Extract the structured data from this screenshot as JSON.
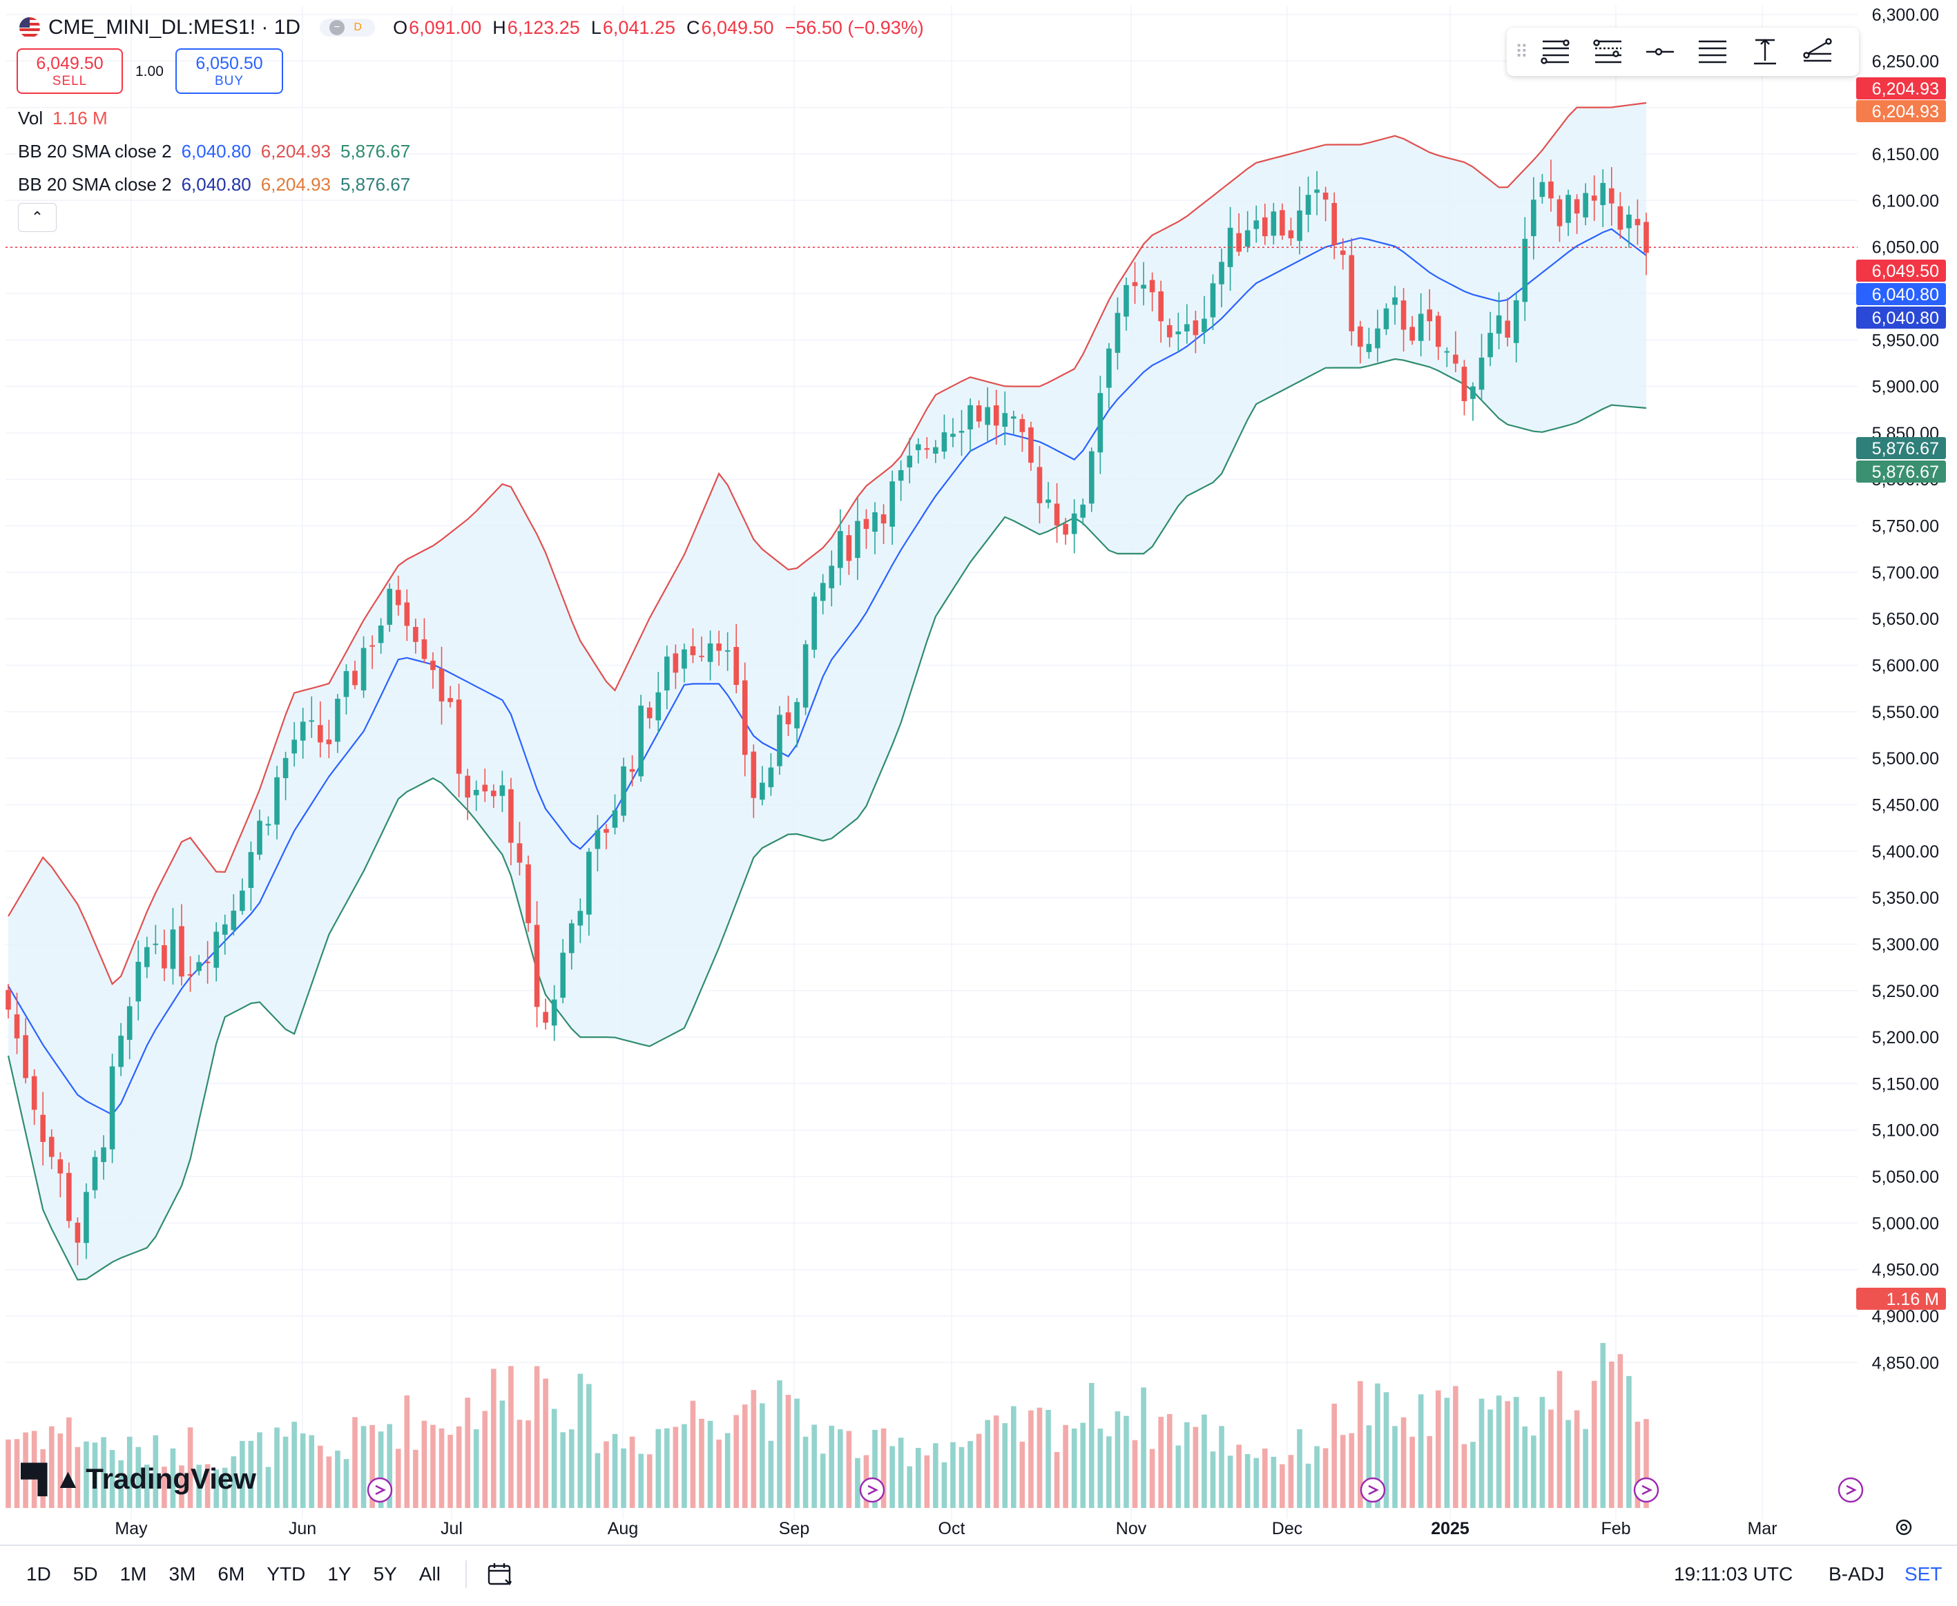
{
  "header": {
    "symbol": "CME_MINI_DL:MES1! · 1D",
    "badge_d": "D",
    "open_label": "O",
    "open": "6,091.00",
    "high_label": "H",
    "high": "6,123.25",
    "low_label": "L",
    "low": "6,041.25",
    "close_label": "C",
    "close": "6,049.50",
    "change": "−56.50 (−0.93%)"
  },
  "trade": {
    "sell_price": "6,049.50",
    "sell_label": "SELL",
    "qty": "1.00",
    "buy_price": "6,050.50",
    "buy_label": "BUY"
  },
  "legend": {
    "vol_label": "Vol",
    "vol_value": "1.16 M",
    "bb1_label": "BB 20 SMA close 2",
    "bb1_basis": "6,040.80",
    "bb1_upper": "6,204.93",
    "bb1_lower": "5,876.67",
    "bb2_label": "BB 20 SMA close 2",
    "bb2_basis": "6,040.80",
    "bb2_upper": "6,204.93",
    "bb2_lower": "5,876.67"
  },
  "price_tags": {
    "upper_a": "6,204.93",
    "upper_b": "6,204.93",
    "last": "6,049.50",
    "basis_a": "6,040.80",
    "basis_b": "6,040.80",
    "lower_a": "5,876.67",
    "lower_b": "5,876.67",
    "volume": "1.16 M"
  },
  "colors": {
    "up": "#26a69a",
    "down": "#ef5350",
    "upper_band": "#e0504f",
    "basis": "#2962ff",
    "lower_band": "#2f8c6e",
    "band_fill": "#e3f2fd"
  },
  "logo_text": "TradingView",
  "bottom_bar": {
    "ranges": [
      "1D",
      "5D",
      "1M",
      "3M",
      "6M",
      "YTD",
      "1Y",
      "5Y",
      "All"
    ],
    "time": "19:11:03 UTC",
    "adj": "B-ADJ",
    "set": "SET"
  },
  "chart_data": {
    "type": "candlestick",
    "title": "",
    "y_axis_ticks": [
      "6,300.00",
      "6,250.00",
      "6,200.00",
      "6,150.00",
      "6,100.00",
      "6,050.00",
      "6,000.00",
      "5,950.00",
      "5,900.00",
      "5,850.00",
      "5,800.00",
      "5,750.00",
      "5,700.00",
      "5,650.00",
      "5,600.00",
      "5,550.00",
      "5,500.00",
      "5,450.00",
      "5,400.00",
      "5,350.00",
      "5,300.00",
      "5,250.00",
      "5,200.00",
      "5,150.00",
      "5,100.00",
      "5,050.00",
      "5,000.00",
      "4,950.00",
      "4,900.00",
      "4,850.00"
    ],
    "ylim": [
      4835,
      6310
    ],
    "x_axis_ticks": [
      {
        "label": "May",
        "bold": false
      },
      {
        "label": "Jun",
        "bold": false
      },
      {
        "label": "Jul",
        "bold": false
      },
      {
        "label": "Aug",
        "bold": false
      },
      {
        "label": "Sep",
        "bold": false
      },
      {
        "label": "Oct",
        "bold": false
      },
      {
        "label": "Nov",
        "bold": false
      },
      {
        "label": "Dec",
        "bold": false
      },
      {
        "label": "2025",
        "bold": true
      },
      {
        "label": "Feb",
        "bold": false
      },
      {
        "label": "Mar",
        "bold": false
      }
    ],
    "anchors": [
      {
        "c": 5230,
        "u": 5330,
        "m": 5255,
        "l": 5180,
        "v": 0.24
      },
      {
        "c": 5100,
        "u": 5395,
        "m": 5190,
        "l": 5010,
        "v": 0.27
      },
      {
        "c": 4980,
        "u": 5340,
        "m": 5135,
        "l": 4935,
        "v": 0.25
      },
      {
        "c": 5160,
        "u": 5250,
        "m": 5115,
        "l": 4960,
        "v": 0.2
      },
      {
        "c": 5310,
        "u": 5345,
        "m": 5200,
        "l": 4975,
        "v": 0.18
      },
      {
        "c": 5280,
        "u": 5420,
        "m": 5260,
        "l": 5050,
        "v": 0.22
      },
      {
        "c": 5320,
        "u": 5370,
        "m": 5300,
        "l": 5220,
        "v": 0.18
      },
      {
        "c": 5420,
        "u": 5460,
        "m": 5340,
        "l": 5240,
        "v": 0.2
      },
      {
        "c": 5520,
        "u": 5570,
        "m": 5420,
        "l": 5200,
        "v": 0.22
      },
      {
        "c": 5520,
        "u": 5580,
        "m": 5480,
        "l": 5310,
        "v": 0.18
      },
      {
        "c": 5620,
        "u": 5650,
        "m": 5530,
        "l": 5380,
        "v": 0.25
      },
      {
        "c": 5680,
        "u": 5710,
        "m": 5610,
        "l": 5460,
        "v": 0.3
      },
      {
        "c": 5600,
        "u": 5730,
        "m": 5600,
        "l": 5480,
        "v": 0.28
      },
      {
        "c": 5450,
        "u": 5760,
        "m": 5580,
        "l": 5440,
        "v": 0.35
      },
      {
        "c": 5460,
        "u": 5800,
        "m": 5560,
        "l": 5390,
        "v": 0.4
      },
      {
        "c": 5200,
        "u": 5730,
        "m": 5450,
        "l": 5250,
        "v": 0.45
      },
      {
        "c": 5350,
        "u": 5630,
        "m": 5400,
        "l": 5200,
        "v": 0.35
      },
      {
        "c": 5450,
        "u": 5570,
        "m": 5440,
        "l": 5200,
        "v": 0.22
      },
      {
        "c": 5560,
        "u": 5650,
        "m": 5510,
        "l": 5190,
        "v": 0.25
      },
      {
        "c": 5620,
        "u": 5720,
        "m": 5580,
        "l": 5210,
        "v": 0.3
      },
      {
        "c": 5640,
        "u": 5810,
        "m": 5580,
        "l": 5300,
        "v": 0.35
      },
      {
        "c": 5450,
        "u": 5730,
        "m": 5520,
        "l": 5400,
        "v": 0.38
      },
      {
        "c": 5560,
        "u": 5700,
        "m": 5500,
        "l": 5420,
        "v": 0.3
      },
      {
        "c": 5700,
        "u": 5730,
        "m": 5600,
        "l": 5410,
        "v": 0.25
      },
      {
        "c": 5760,
        "u": 5790,
        "m": 5650,
        "l": 5440,
        "v": 0.2
      },
      {
        "c": 5790,
        "u": 5820,
        "m": 5720,
        "l": 5530,
        "v": 0.2
      },
      {
        "c": 5850,
        "u": 5890,
        "m": 5780,
        "l": 5650,
        "v": 0.22
      },
      {
        "c": 5880,
        "u": 5910,
        "m": 5830,
        "l": 5710,
        "v": 0.22
      },
      {
        "c": 5860,
        "u": 5900,
        "m": 5850,
        "l": 5760,
        "v": 0.25
      },
      {
        "c": 5790,
        "u": 5900,
        "m": 5840,
        "l": 5740,
        "v": 0.28
      },
      {
        "c": 5740,
        "u": 5920,
        "m": 5820,
        "l": 5760,
        "v": 0.3
      },
      {
        "c": 5980,
        "u": 6000,
        "m": 5880,
        "l": 5720,
        "v": 0.35
      },
      {
        "c": 6000,
        "u": 6060,
        "m": 5920,
        "l": 5720,
        "v": 0.3
      },
      {
        "c": 5940,
        "u": 6080,
        "m": 5940,
        "l": 5780,
        "v": 0.28
      },
      {
        "c": 6030,
        "u": 6110,
        "m": 5970,
        "l": 5800,
        "v": 0.24
      },
      {
        "c": 6090,
        "u": 6140,
        "m": 6010,
        "l": 5880,
        "v": 0.2
      },
      {
        "c": 6070,
        "u": 6150,
        "m": 6030,
        "l": 5900,
        "v": 0.18
      },
      {
        "c": 6100,
        "u": 6160,
        "m": 6050,
        "l": 5920,
        "v": 0.25
      },
      {
        "c": 5930,
        "u": 6160,
        "m": 6060,
        "l": 5920,
        "v": 0.35
      },
      {
        "c": 5980,
        "u": 6170,
        "m": 6050,
        "l": 5930,
        "v": 0.28
      },
      {
        "c": 5950,
        "u": 6150,
        "m": 6020,
        "l": 5920,
        "v": 0.3
      },
      {
        "c": 5900,
        "u": 6140,
        "m": 6000,
        "l": 5900,
        "v": 0.33
      },
      {
        "c": 5960,
        "u": 6110,
        "m": 5990,
        "l": 5860,
        "v": 0.3
      },
      {
        "c": 6110,
        "u": 6150,
        "m": 6020,
        "l": 5850,
        "v": 0.35
      },
      {
        "c": 6080,
        "u": 6200,
        "m": 6050,
        "l": 5860,
        "v": 0.4
      },
      {
        "c": 6100,
        "u": 6200,
        "m": 6070,
        "l": 5880,
        "v": 0.42
      },
      {
        "c": 6049.5,
        "u": 6204.93,
        "m": 6040.8,
        "l": 5876.67,
        "v": 0.38
      }
    ]
  }
}
